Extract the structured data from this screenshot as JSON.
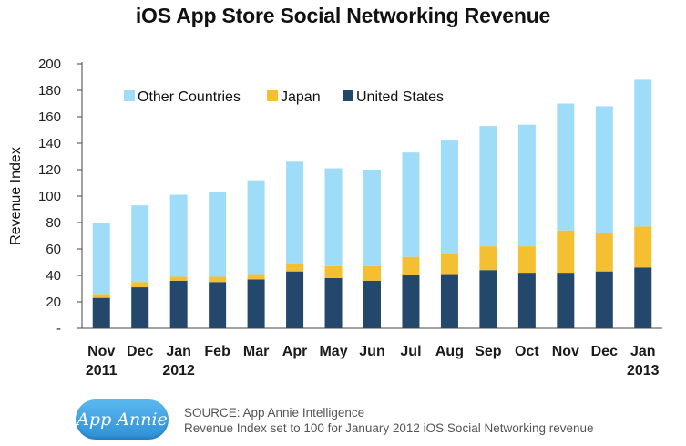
{
  "page": {
    "title": "iOS App Store Social Networking Revenue",
    "logo_text": "App Annie",
    "source_line1": "SOURCE: App Annie Intelligence",
    "source_line2": "Revenue Index set to 100 for January 2012 iOS Social Networking revenue"
  },
  "chart_data": {
    "type": "bar",
    "stacked": true,
    "title": "iOS App Store Social Networking Revenue",
    "ylabel": "Revenue Index",
    "xlabel": "",
    "ylim": [
      0,
      200
    ],
    "yticks": [
      "-",
      "20",
      "40",
      "60",
      "80",
      "100",
      "120",
      "140",
      "160",
      "180",
      "200"
    ],
    "categories": [
      [
        "Nov",
        "2011"
      ],
      [
        "Dec",
        ""
      ],
      [
        "Jan",
        "2012"
      ],
      [
        "Feb",
        ""
      ],
      [
        "Mar",
        ""
      ],
      [
        "Apr",
        ""
      ],
      [
        "May",
        ""
      ],
      [
        "Jun",
        ""
      ],
      [
        "Jul",
        ""
      ],
      [
        "Aug",
        ""
      ],
      [
        "Sep",
        ""
      ],
      [
        "Oct",
        ""
      ],
      [
        "Nov",
        ""
      ],
      [
        "Dec",
        ""
      ],
      [
        "Jan",
        "2013"
      ]
    ],
    "series": [
      {
        "name": "United States",
        "color": "#24486b",
        "values": [
          23,
          31,
          36,
          35,
          37,
          43,
          38,
          36,
          40,
          41,
          44,
          42,
          42,
          43,
          46
        ]
      },
      {
        "name": "Japan",
        "color": "#f4c031",
        "values": [
          3,
          4,
          3,
          4,
          4,
          6,
          9,
          11,
          14,
          15,
          18,
          20,
          32,
          29,
          31
        ]
      },
      {
        "name": "Other Countries",
        "color": "#9fdcf7",
        "values": [
          54,
          58,
          62,
          64,
          71,
          77,
          74,
          73,
          79,
          86,
          91,
          92,
          96,
          96,
          111
        ]
      }
    ],
    "legend": [
      "Other Countries",
      "Japan",
      "United States"
    ],
    "legend_position": "top-left",
    "grid": false
  }
}
